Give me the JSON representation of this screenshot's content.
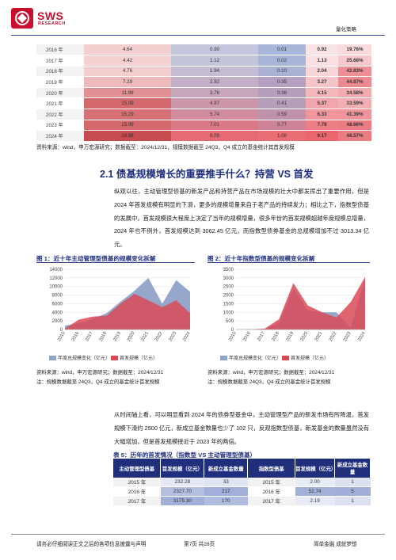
{
  "header": {
    "logo_main": "SWS",
    "logo_sub": "RESEARCH",
    "category": "量化策略"
  },
  "top_table": {
    "rows": [
      {
        "year": "2016 年",
        "c1": "4.64",
        "c2": "0.90",
        "c3": "0.01",
        "c4": "0.92",
        "c5": "19.76%"
      },
      {
        "year": "2017 年",
        "c1": "4.42",
        "c2": "1.12",
        "c3": "0.02",
        "c4": "1.13",
        "c5": "25.68%"
      },
      {
        "year": "2018 年",
        "c1": "4.76",
        "c2": "1.94",
        "c3": "0.10",
        "c4": "2.04",
        "c5": "42.83%"
      },
      {
        "year": "2019 年",
        "c1": "7.29",
        "c2": "2.92",
        "c3": "0.35",
        "c4": "3.27",
        "c5": "44.87%"
      },
      {
        "year": "2020 年",
        "c1": "11.99",
        "c2": "3.76",
        "c3": "0.38",
        "c4": "4.15",
        "c5": "34.58%"
      },
      {
        "year": "2021 年",
        "c1": "15.99",
        "c2": "4.97",
        "c3": "0.41",
        "c4": "5.37",
        "c5": "33.59%"
      },
      {
        "year": "2022 年",
        "c1": "15.29",
        "c2": "5.74",
        "c3": "0.59",
        "c4": "6.33",
        "c5": "41.39%"
      },
      {
        "year": "2023 年",
        "c1": "15.99",
        "c2": "7.01",
        "c3": "0.77",
        "c4": "7.78",
        "c5": "48.66%"
      },
      {
        "year": "2024 年",
        "c1": "18.88",
        "c2": "8.09",
        "c3": "1.08",
        "c4": "9.17",
        "c5": "48.57%"
      }
    ],
    "source": "资料来源：wind，申万宏源研究；数据截至：2024/12/31，规模数据截至 24Q3，Q4 成立的基金统计其首发规模"
  },
  "section": {
    "title": "2.1 债基规模增长的重要推手什么？持营 VS 首发",
    "para1": "纵观以往，主动管理型债基的新发产品和持营产品在市场规模的壮大中都发挥出了重要作用，但是 2024 年首发规模有明显的下滑，更多的规模增量来自于老产品的持续发力；相比之下，指数型债基的发展中，首发规模很大程度上决定了当年的规模增量，很多年份的首发规模超越年度规模总增量，2024 年也不例外，首发规模达到 3062.45 亿元，而指数型债券基金的总规模增加不过 3013.34 亿元。",
    "para2": "从时间轴上看，可以明显看到 2024 年的债券型基金中，主动管理型产品的新发市场有所降温，首发规模下滑约 2500 亿元，新成立基金数量也少了 102 只，反观指数型债基，新发基金的数量虽然没有大幅增加，但是首发规模接近于 2023 年的两倍。"
  },
  "figure1": {
    "title": "图 1：近十年主动管理型债基的规模变化拆解",
    "note": "资料来源：wind，申万宏源研究；数据截至：2024/12/31\n注：规模数据截至 24Q3，Q4 成立的基金统计首发规模"
  },
  "figure2": {
    "title": "图 2：近十年指数型债基的规模变化拆解",
    "note": "资料来源：wind，申万宏源研究；数据截至：2024/12/31\n注：规模数据截至 24Q3，Q4 成立的基金统计首发规模"
  },
  "chart_data": [
    {
      "type": "area",
      "x": [
        "2015",
        "2016",
        "2017",
        "2018",
        "2019",
        "2020",
        "2021",
        "2022",
        "2023",
        "2024"
      ],
      "series": [
        {
          "name": "年度总规模变化（亿元）",
          "values": [
            900,
            1500,
            2500,
            3800,
            6500,
            9000,
            12000,
            6000,
            11500,
            8800
          ]
        },
        {
          "name": "首发规模（亿元）",
          "values": [
            200,
            2300,
            3000,
            3200,
            6000,
            8300,
            6800,
            5200,
            6800,
            3800
          ]
        }
      ],
      "ylim": [
        0,
        14000
      ],
      "yticks": [
        "0",
        "2000",
        "4000",
        "6000",
        "8000",
        "10000",
        "12000",
        "14000"
      ],
      "colors": [
        "#8fa3c9",
        "#d94a57"
      ]
    },
    {
      "type": "area",
      "x": [
        "2015",
        "2016",
        "2017",
        "2018",
        "2019",
        "2020",
        "2021",
        "2022",
        "2023",
        "2024"
      ],
      "series": [
        {
          "name": "年度总规模变化（亿元）",
          "values": [
            0,
            10,
            0,
            400,
            2400,
            1100,
            1000,
            1000,
            100,
            3013
          ]
        },
        {
          "name": "首发规模（亿元）",
          "values": [
            0,
            10,
            50,
            600,
            2700,
            1400,
            1000,
            700,
            1600,
            3062
          ]
        }
      ],
      "ylim": [
        0,
        3500
      ],
      "yticks": [
        "0",
        "500",
        "1000",
        "1500",
        "2000",
        "2500",
        "3000",
        "3500"
      ],
      "colors": [
        "#8fa3c9",
        "#d94a57"
      ]
    }
  ],
  "table5": {
    "title": "表 5：历年的首发情况（指数型 VS 主动管理型债基）",
    "headers": [
      "主动管理型债基",
      "首发规模（亿元）",
      "新成立基金数量",
      "指数型债基",
      "首发规模（亿元）",
      "新成立基金数量"
    ],
    "rows": [
      {
        "y1": "2015 年",
        "a1": "232.28",
        "b1": "33",
        "y2": "2015 年",
        "a2": "2.00",
        "b2": "1"
      },
      {
        "y1": "2016 年",
        "a1": "2327.70",
        "b1": "217",
        "y2": "2016 年",
        "a2": "52.74",
        "b2": "5"
      },
      {
        "y1": "2017 年",
        "a1": "3175.30",
        "b1": "170",
        "y2": "2017 年",
        "a2": "2.19",
        "b2": "1"
      }
    ]
  },
  "footer": {
    "left": "请务必仔细阅读正文之后的各项信息披露与声明",
    "center": "第7页 共28页",
    "right": "简单金融 成就梦想"
  }
}
